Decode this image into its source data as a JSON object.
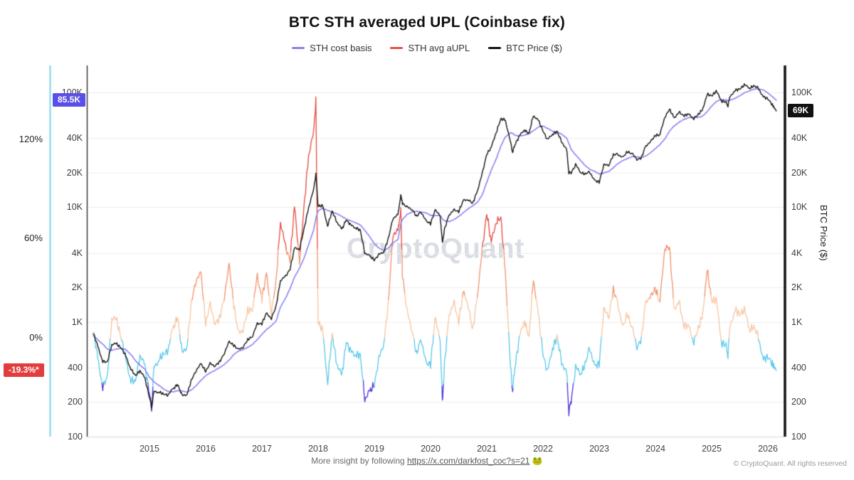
{
  "title": "BTC STH averaged UPL (Coinbase fix)",
  "legend": [
    {
      "label": "STH cost basis",
      "color": "#8c82f2"
    },
    {
      "label": "STH avg aUPL",
      "color": "#e85149"
    },
    {
      "label": "BTC Price ($)",
      "color": "#141414"
    }
  ],
  "badges": {
    "sth_cost_basis": {
      "text": "85.5K",
      "bg": "#5a4fe8",
      "value": 85500
    },
    "aupl": {
      "text": "-19.3%*",
      "bg": "#e23d3d",
      "value": -19.3
    },
    "btc_price": {
      "text": "69K",
      "bg": "#111111",
      "value": 69000
    }
  },
  "axes": {
    "left_pct_ticks": [
      {
        "label": "120%",
        "value": 120
      },
      {
        "label": "60%",
        "value": 60
      },
      {
        "label": "0%",
        "value": 0
      }
    ],
    "price_ticks": [
      {
        "label": "100K",
        "value": 100000
      },
      {
        "label": "40K",
        "value": 40000
      },
      {
        "label": "20K",
        "value": 20000
      },
      {
        "label": "10K",
        "value": 10000
      },
      {
        "label": "4K",
        "value": 4000
      },
      {
        "label": "2K",
        "value": 2000
      },
      {
        "label": "1K",
        "value": 1000
      },
      {
        "label": "400",
        "value": 400
      },
      {
        "label": "200",
        "value": 200
      },
      {
        "label": "100",
        "value": 100
      }
    ],
    "x_ticks": [
      "2015",
      "2016",
      "2017",
      "2018",
      "2019",
      "2020",
      "2021",
      "2022",
      "2023",
      "2024",
      "2025",
      "2026"
    ],
    "right_axis_title": "BTC Price ($)"
  },
  "watermark": "CryptoQuant",
  "footer": {
    "prefix": "More insight by following",
    "link": "https://x.com/darkfost_coc?s=21",
    "emoji": "🐸",
    "copyright": "© CryptoQuant. All rights reserved"
  },
  "chart_data": {
    "type": "line",
    "title": "BTC STH averaged UPL (Coinbase fix)",
    "x_label": "year",
    "x_range": [
      2013.9,
      2026.3
    ],
    "price_axis": {
      "scale": "log",
      "range": [
        100,
        172000
      ],
      "ticks": [
        100000,
        40000,
        20000,
        10000,
        4000,
        2000,
        1000,
        400,
        200,
        100
      ],
      "label": "BTC Price ($)"
    },
    "pct_axis": {
      "scale": "linear",
      "ticks": [
        120,
        60,
        0
      ],
      "current_value": -19.3
    },
    "series_names": [
      "BTC Price ($)",
      "STH cost basis",
      "STH avg aUPL (%)"
    ],
    "current_values": {
      "btc_price": 69000,
      "sth_cost_basis": 85500,
      "sth_avg_aupl_pct": -19.3
    },
    "aupl_bands": [
      {
        "min": 55,
        "color": "#e6483c"
      },
      {
        "min": 25,
        "color": "#f2916b"
      },
      {
        "min": 0,
        "color": "#f7c5a0"
      },
      {
        "min": -28,
        "color": "#57c7ea"
      },
      {
        "min": -999,
        "color": "#4934d8"
      }
    ],
    "columns": [
      "year",
      "btc_price",
      "sth_cost_basis",
      "sth_avg_aupl_pct"
    ],
    "points": [
      [
        2014.0,
        800,
        760,
        5.3
      ],
      [
        2014.08,
        620,
        700,
        -11.4
      ],
      [
        2014.17,
        455,
        640,
        -28.9
      ],
      [
        2014.25,
        445,
        580,
        -23.3
      ],
      [
        2014.33,
        630,
        565,
        11.5
      ],
      [
        2014.42,
        640,
        580,
        10.3
      ],
      [
        2014.5,
        590,
        590,
        0.0
      ],
      [
        2014.58,
        505,
        575,
        -12.2
      ],
      [
        2014.67,
        390,
        520,
        -25.0
      ],
      [
        2014.75,
        340,
        460,
        -26.1
      ],
      [
        2014.83,
        375,
        420,
        -10.7
      ],
      [
        2014.92,
        320,
        385,
        -16.9
      ],
      [
        2015.0,
        220,
        330,
        -33.3
      ],
      [
        2015.04,
        180,
        315,
        -42.9
      ],
      [
        2015.08,
        250,
        300,
        -16.7
      ],
      [
        2015.17,
        245,
        280,
        -12.5
      ],
      [
        2015.25,
        235,
        260,
        -9.6
      ],
      [
        2015.33,
        230,
        248,
        -7.3
      ],
      [
        2015.42,
        260,
        245,
        6.1
      ],
      [
        2015.5,
        285,
        252,
        13.1
      ],
      [
        2015.58,
        230,
        250,
        -8.0
      ],
      [
        2015.67,
        235,
        245,
        -4.1
      ],
      [
        2015.75,
        315,
        256,
        23.0
      ],
      [
        2015.83,
        375,
        278,
        34.9
      ],
      [
        2015.92,
        430,
        310,
        38.7
      ],
      [
        2016.0,
        370,
        340,
        8.8
      ],
      [
        2016.08,
        435,
        360,
        20.8
      ],
      [
        2016.17,
        415,
        380,
        9.2
      ],
      [
        2016.25,
        450,
        400,
        12.5
      ],
      [
        2016.33,
        530,
        425,
        24.7
      ],
      [
        2016.42,
        670,
        465,
        44.1
      ],
      [
        2016.5,
        625,
        520,
        20.2
      ],
      [
        2016.58,
        575,
        555,
        3.6
      ],
      [
        2016.67,
        610,
        575,
        6.1
      ],
      [
        2016.75,
        700,
        600,
        16.7
      ],
      [
        2016.83,
        745,
        635,
        17.3
      ],
      [
        2016.92,
        960,
        700,
        37.1
      ],
      [
        2017.0,
        965,
        780,
        23.7
      ],
      [
        2017.08,
        1190,
        855,
        39.2
      ],
      [
        2017.17,
        1080,
        930,
        16.1
      ],
      [
        2017.25,
        1350,
        1010,
        33.7
      ],
      [
        2017.33,
        2300,
        1350,
        70.4
      ],
      [
        2017.42,
        2480,
        1600,
        55.0
      ],
      [
        2017.5,
        2875,
        1950,
        47.4
      ],
      [
        2017.58,
        4400,
        2450,
        79.6
      ],
      [
        2017.67,
        4340,
        2950,
        47.1
      ],
      [
        2017.75,
        6470,
        3600,
        79.7
      ],
      [
        2017.83,
        9900,
        4700,
        110.6
      ],
      [
        2017.92,
        14100,
        6300,
        123.8
      ],
      [
        2017.96,
        19600,
        8000,
        145.0
      ],
      [
        2018.0,
        10200,
        9300,
        9.7
      ],
      [
        2018.08,
        10300,
        9800,
        5.1
      ],
      [
        2018.17,
        6900,
        9400,
        -26.6
      ],
      [
        2018.25,
        9250,
        9000,
        2.8
      ],
      [
        2018.33,
        7500,
        8800,
        -14.8
      ],
      [
        2018.42,
        6400,
        8300,
        -22.9
      ],
      [
        2018.5,
        7750,
        7900,
        -1.9
      ],
      [
        2018.58,
        7000,
        7600,
        -7.9
      ],
      [
        2018.67,
        6600,
        7300,
        -9.6
      ],
      [
        2018.75,
        6300,
        7000,
        -10.0
      ],
      [
        2018.83,
        4000,
        6300,
        -36.5
      ],
      [
        2018.92,
        3740,
        5500,
        -32.0
      ],
      [
        2019.0,
        3460,
        4800,
        -27.9
      ],
      [
        2019.08,
        3850,
        4400,
        -12.5
      ],
      [
        2019.17,
        4100,
        4200,
        -2.4
      ],
      [
        2019.25,
        5350,
        4400,
        21.6
      ],
      [
        2019.33,
        8000,
        4900,
        63.3
      ],
      [
        2019.42,
        8550,
        5200,
        64.4
      ],
      [
        2019.47,
        12900,
        7200,
        79.2
      ],
      [
        2019.5,
        10800,
        7800,
        38.5
      ],
      [
        2019.58,
        10000,
        8600,
        16.3
      ],
      [
        2019.67,
        9600,
        9100,
        5.5
      ],
      [
        2019.75,
        8300,
        9200,
        -9.8
      ],
      [
        2019.83,
        9150,
        9100,
        0.5
      ],
      [
        2019.92,
        7550,
        8900,
        -15.2
      ],
      [
        2020.0,
        7200,
        8500,
        -15.3
      ],
      [
        2020.08,
        9350,
        8400,
        11.3
      ],
      [
        2020.17,
        8550,
        8500,
        0.6
      ],
      [
        2020.21,
        4900,
        7900,
        -38.0
      ],
      [
        2020.25,
        6450,
        7600,
        -15.1
      ],
      [
        2020.33,
        8650,
        7500,
        15.3
      ],
      [
        2020.42,
        9450,
        7800,
        21.2
      ],
      [
        2020.5,
        9140,
        8300,
        10.1
      ],
      [
        2020.58,
        11350,
        8900,
        27.5
      ],
      [
        2020.67,
        11650,
        9700,
        20.1
      ],
      [
        2020.75,
        10780,
        10300,
        4.7
      ],
      [
        2020.83,
        13800,
        11000,
        25.5
      ],
      [
        2020.92,
        19700,
        12800,
        53.9
      ],
      [
        2021.0,
        29000,
        16500,
        75.8
      ],
      [
        2021.08,
        33100,
        21000,
        57.6
      ],
      [
        2021.17,
        45200,
        26500,
        70.6
      ],
      [
        2021.25,
        58800,
        34000,
        72.9
      ],
      [
        2021.33,
        57750,
        41000,
        40.9
      ],
      [
        2021.42,
        37300,
        44500,
        -16.2
      ],
      [
        2021.46,
        30000,
        44000,
        -31.8
      ],
      [
        2021.5,
        35000,
        42500,
        -17.6
      ],
      [
        2021.58,
        41600,
        41500,
        0.2
      ],
      [
        2021.67,
        47100,
        42500,
        10.8
      ],
      [
        2021.75,
        43800,
        43500,
        0.7
      ],
      [
        2021.83,
        63500,
        46500,
        36.6
      ],
      [
        2021.92,
        57000,
        50000,
        14.0
      ],
      [
        2022.0,
        46200,
        51000,
        -9.4
      ],
      [
        2022.08,
        38500,
        48500,
        -20.6
      ],
      [
        2022.17,
        43200,
        46000,
        -6.1
      ],
      [
        2022.25,
        45500,
        45000,
        1.1
      ],
      [
        2022.33,
        37650,
        43500,
        -13.4
      ],
      [
        2022.42,
        31800,
        40000,
        -20.5
      ],
      [
        2022.46,
        20000,
        36000,
        -44.4
      ],
      [
        2022.5,
        19900,
        32000,
        -37.8
      ],
      [
        2022.58,
        23300,
        28500,
        -18.2
      ],
      [
        2022.67,
        20050,
        25500,
        -21.4
      ],
      [
        2022.75,
        19400,
        23000,
        -15.7
      ],
      [
        2022.83,
        20500,
        21500,
        -4.7
      ],
      [
        2022.92,
        17100,
        20500,
        -16.6
      ],
      [
        2023.0,
        16550,
        19500,
        -15.1
      ],
      [
        2023.08,
        23100,
        19800,
        16.7
      ],
      [
        2023.17,
        23150,
        20500,
        12.9
      ],
      [
        2023.25,
        28500,
        22000,
        29.5
      ],
      [
        2023.33,
        29250,
        24000,
        21.9
      ],
      [
        2023.42,
        27200,
        25500,
        6.7
      ],
      [
        2023.5,
        30450,
        26500,
        14.9
      ],
      [
        2023.58,
        29200,
        27500,
        6.2
      ],
      [
        2023.67,
        25950,
        27500,
        -5.6
      ],
      [
        2023.75,
        26950,
        27000,
        -0.2
      ],
      [
        2023.83,
        34650,
        28000,
        23.8
      ],
      [
        2023.92,
        37700,
        30000,
        25.7
      ],
      [
        2024.0,
        42250,
        32500,
        30.0
      ],
      [
        2024.08,
        42550,
        35000,
        21.6
      ],
      [
        2024.17,
        61150,
        39500,
        54.8
      ],
      [
        2024.25,
        71300,
        46000,
        55.0
      ],
      [
        2024.33,
        60650,
        51000,
        18.9
      ],
      [
        2024.42,
        67500,
        55000,
        22.7
      ],
      [
        2024.5,
        62700,
        58000,
        8.1
      ],
      [
        2024.58,
        64600,
        60000,
        7.7
      ],
      [
        2024.67,
        58950,
        60500,
        -2.6
      ],
      [
        2024.75,
        63300,
        60500,
        4.6
      ],
      [
        2024.83,
        70200,
        62000,
        13.2
      ],
      [
        2024.92,
        96400,
        68000,
        41.8
      ],
      [
        2025.0,
        93400,
        76000,
        22.9
      ],
      [
        2025.08,
        102400,
        83000,
        23.4
      ],
      [
        2025.17,
        84350,
        86500,
        -2.5
      ],
      [
        2025.25,
        82550,
        86000,
        -4.0
      ],
      [
        2025.29,
        76500,
        85000,
        -10.0
      ],
      [
        2025.33,
        94200,
        86000,
        9.5
      ],
      [
        2025.42,
        104600,
        89000,
        17.5
      ],
      [
        2025.5,
        107100,
        93500,
        14.5
      ],
      [
        2025.58,
        115800,
        99000,
        17.0
      ],
      [
        2025.67,
        108200,
        103000,
        5.0
      ],
      [
        2025.75,
        114000,
        106500,
        7.0
      ],
      [
        2025.83,
        110000,
        108000,
        1.9
      ],
      [
        2025.92,
        92000,
        105000,
        -12.4
      ],
      [
        2026.0,
        88000,
        99000,
        -11.1
      ],
      [
        2026.08,
        78000,
        92000,
        -15.2
      ],
      [
        2026.15,
        69000,
        85500,
        -19.3
      ]
    ]
  }
}
